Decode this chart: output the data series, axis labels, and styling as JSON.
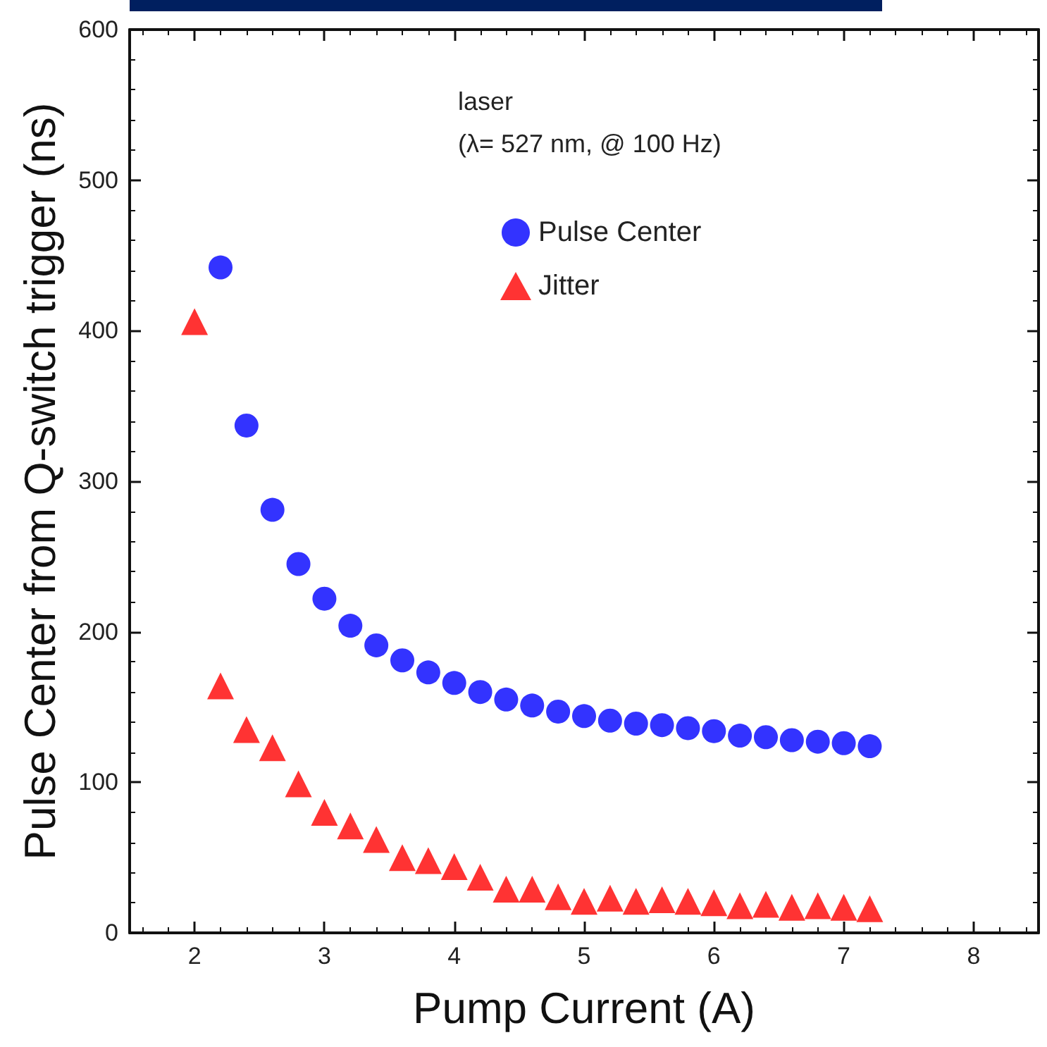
{
  "chart_data": {
    "type": "scatter",
    "xlabel": "Pump Current (A)",
    "ylabel": "Pulse Center from Q-switch trigger (ns)",
    "annotations": [
      "laser",
      "(λ= 527 nm, @ 100 Hz)"
    ],
    "xlim": [
      1.5,
      8.5
    ],
    "xticks": [
      2,
      3,
      4,
      5,
      6,
      7,
      8
    ],
    "ylim": [
      0,
      600
    ],
    "yticks": [
      0,
      100,
      200,
      300,
      400,
      500,
      600
    ],
    "grid": false,
    "legend": "top right",
    "series": [
      {
        "name": "Pulse Center",
        "color": "#0000ff",
        "marker": "circle",
        "x": [
          2.2,
          2.4,
          2.6,
          2.8,
          3.0,
          3.2,
          3.4,
          3.6,
          3.8,
          4.0,
          4.2,
          4.4,
          4.6,
          4.8,
          5.0,
          5.2,
          5.4,
          5.6,
          5.8,
          6.0,
          6.2,
          6.4,
          6.6,
          6.8,
          7.0,
          7.2
        ],
        "values": [
          442,
          337,
          281,
          245,
          222,
          204,
          191,
          181,
          173,
          166,
          160,
          155,
          151,
          147,
          144,
          141,
          139,
          138,
          136,
          134,
          131,
          130,
          128,
          127,
          126,
          124
        ]
      },
      {
        "name": "Jitter",
        "color": "#ff0000",
        "marker": "triangle",
        "x": [
          2.0,
          2.2,
          2.4,
          2.6,
          2.8,
          3.0,
          3.2,
          3.4,
          3.6,
          3.8,
          4.0,
          4.2,
          4.4,
          4.6,
          4.8,
          5.0,
          5.2,
          5.4,
          5.6,
          5.8,
          6.0,
          6.2,
          6.4,
          6.6,
          6.8,
          7.0,
          7.2
        ],
        "values": [
          406,
          164,
          135,
          123,
          99,
          80,
          71,
          62,
          50,
          48,
          44,
          37,
          29,
          29,
          24,
          21,
          23,
          21,
          22,
          21,
          20,
          18,
          19,
          17,
          18,
          17,
          16
        ]
      }
    ]
  }
}
